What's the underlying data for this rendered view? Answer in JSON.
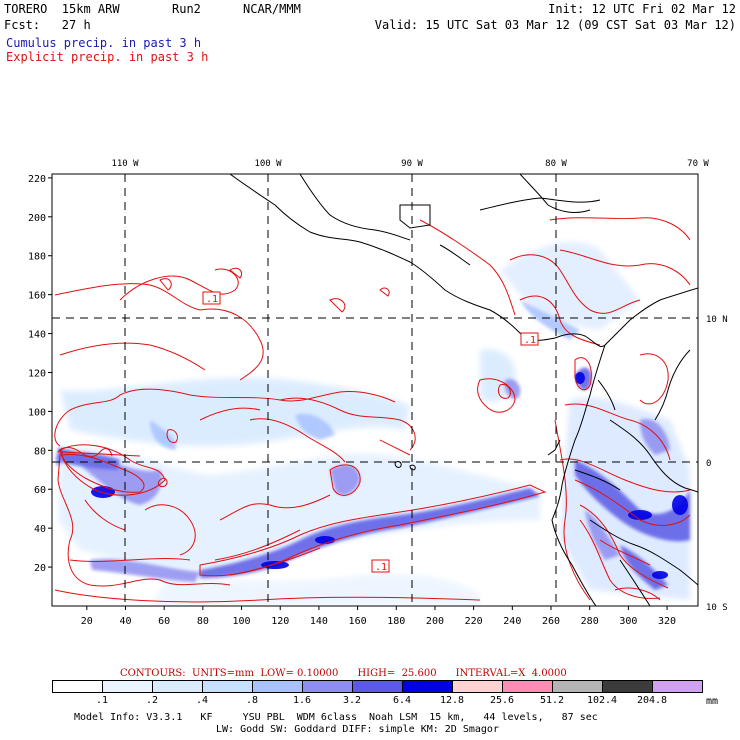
{
  "header": {
    "model": "TORERO  15km ARW",
    "run": "Run2",
    "org": "NCAR/MMM",
    "init": "Init: 12 UTC Fri 02 Mar 12",
    "fcst": "Fcst:   27 h",
    "valid": "Valid: 15 UTC Sat 03 Mar 12 (09 CST Sat 03 Mar 12)",
    "cumulus_label": "Cumulus precip. in past 3 h",
    "explicit_label": "Explicit precip. in past 3 h"
  },
  "map": {
    "lon_labels": [
      "110 W",
      "100 W",
      "90 W",
      "80 W",
      "70 W"
    ],
    "lat_labels": [
      "10 N",
      "0",
      "10 S"
    ],
    "y_ticks": [
      "220",
      "200",
      "180",
      "160",
      "140",
      "120",
      "100",
      "80",
      "60",
      "40",
      "20"
    ],
    "x_ticks": [
      "20",
      "40",
      "60",
      "80",
      "100",
      "120",
      "140",
      "160",
      "180",
      "200",
      "220",
      "240",
      "260",
      "280",
      "300",
      "320"
    ],
    "contour_labels": [
      ".1",
      ".1",
      ".1"
    ]
  },
  "contours": {
    "text": "CONTOURS:  UNITS=mm  LOW= 0.10000      HIGH=  25.600      INTERVAL=X  4.0000"
  },
  "colorbar": {
    "colors": [
      "#ffffff",
      "#eaf4ff",
      "#d9ebff",
      "#c6e0ff",
      "#a8c2ff",
      "#8e8ef0",
      "#5a5ae6",
      "#0000e6",
      "#ffd2d2",
      "#ff8cb4",
      "#b4b4b4",
      "#3c3c3c",
      "#d2a0f0"
    ],
    "labels": [
      ".1",
      ".2",
      ".4",
      ".8",
      "1.6",
      "3.2",
      "6.4",
      "12.8",
      "25.6",
      "51.2",
      "102.4",
      "204.8"
    ],
    "units": "mm"
  },
  "footer": {
    "line1": "Model Info: V3.3.1   KF     YSU PBL  WDM 6class  Noah LSM  15 km,   44 levels,   87 sec",
    "line2": "LW: Godd SW: Goddard DIFF: simple KM: 2D Smagor"
  }
}
